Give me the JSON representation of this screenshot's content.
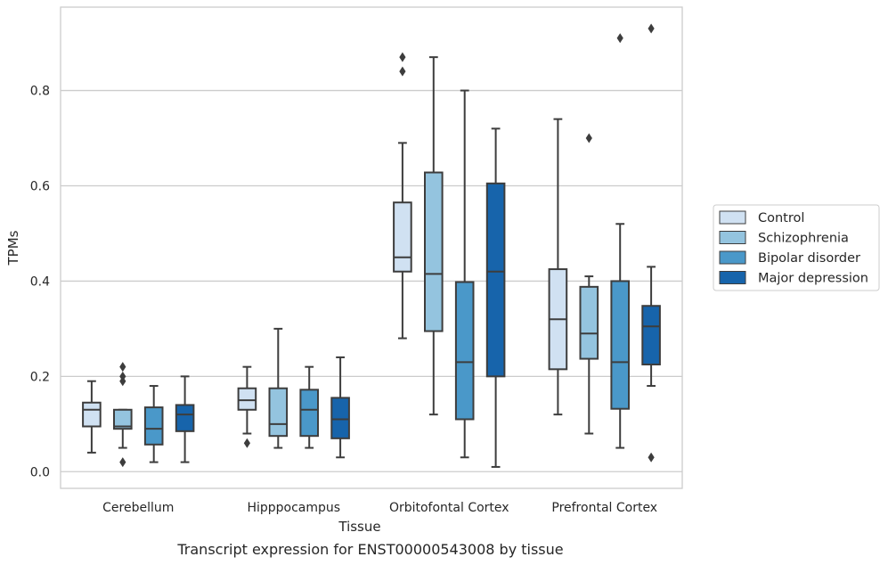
{
  "caption": "Transcript expression for ENST00000543008 by tissue",
  "chart_data": {
    "type": "box",
    "xlabel": "Tissue",
    "ylabel": "TPMs",
    "ylim": [
      -0.035,
      0.975
    ],
    "yticks": [
      "0.0",
      "0.2",
      "0.4",
      "0.6",
      "0.8"
    ],
    "ytick_values": [
      0.0,
      0.2,
      0.4,
      0.6,
      0.8
    ],
    "grid": "horizontal",
    "legend_position": "right",
    "categories": [
      "Cerebellum",
      "Hipppocampus",
      "Orbitofontal Cortex",
      "Prefrontal Cortex"
    ],
    "series": [
      {
        "name": "Control",
        "color": "#d0e1f2",
        "boxes": [
          {
            "whislo": 0.04,
            "q1": 0.095,
            "med": 0.13,
            "q3": 0.145,
            "whishi": 0.19,
            "fliers": []
          },
          {
            "whislo": 0.08,
            "q1": 0.13,
            "med": 0.15,
            "q3": 0.175,
            "whishi": 0.22,
            "fliers": [
              0.06
            ]
          },
          {
            "whislo": 0.28,
            "q1": 0.42,
            "med": 0.45,
            "q3": 0.565,
            "whishi": 0.69,
            "fliers": [
              0.84,
              0.87
            ]
          },
          {
            "whislo": 0.12,
            "q1": 0.215,
            "med": 0.32,
            "q3": 0.425,
            "whishi": 0.74,
            "fliers": []
          }
        ]
      },
      {
        "name": "Schizophrenia",
        "color": "#94c4df",
        "boxes": [
          {
            "whislo": 0.05,
            "q1": 0.09,
            "med": 0.095,
            "q3": 0.13,
            "whishi": 0.13,
            "fliers": [
              0.19,
              0.2,
              0.22,
              0.02
            ]
          },
          {
            "whislo": 0.05,
            "q1": 0.075,
            "med": 0.1,
            "q3": 0.175,
            "whishi": 0.3,
            "fliers": []
          },
          {
            "whislo": 0.12,
            "q1": 0.295,
            "med": 0.415,
            "q3": 0.628,
            "whishi": 0.87,
            "fliers": []
          },
          {
            "whislo": 0.08,
            "q1": 0.237,
            "med": 0.29,
            "q3": 0.388,
            "whishi": 0.41,
            "fliers": [
              0.7
            ]
          }
        ]
      },
      {
        "name": "Bipolar disorder",
        "color": "#4a98c9",
        "boxes": [
          {
            "whislo": 0.02,
            "q1": 0.057,
            "med": 0.09,
            "q3": 0.135,
            "whishi": 0.18,
            "fliers": []
          },
          {
            "whislo": 0.05,
            "q1": 0.075,
            "med": 0.13,
            "q3": 0.172,
            "whishi": 0.22,
            "fliers": []
          },
          {
            "whislo": 0.03,
            "q1": 0.11,
            "med": 0.23,
            "q3": 0.398,
            "whishi": 0.8,
            "fliers": []
          },
          {
            "whislo": 0.05,
            "q1": 0.132,
            "med": 0.23,
            "q3": 0.4,
            "whishi": 0.52,
            "fliers": [
              0.91
            ]
          }
        ]
      },
      {
        "name": "Major depression",
        "color": "#1764ab",
        "boxes": [
          {
            "whislo": 0.02,
            "q1": 0.085,
            "med": 0.12,
            "q3": 0.14,
            "whishi": 0.2,
            "fliers": []
          },
          {
            "whislo": 0.03,
            "q1": 0.07,
            "med": 0.11,
            "q3": 0.155,
            "whishi": 0.24,
            "fliers": []
          },
          {
            "whislo": 0.01,
            "q1": 0.2,
            "med": 0.42,
            "q3": 0.605,
            "whishi": 0.72,
            "fliers": []
          },
          {
            "whislo": 0.18,
            "q1": 0.225,
            "med": 0.305,
            "q3": 0.348,
            "whishi": 0.43,
            "fliers": [
              0.93,
              0.03
            ]
          }
        ]
      }
    ]
  }
}
